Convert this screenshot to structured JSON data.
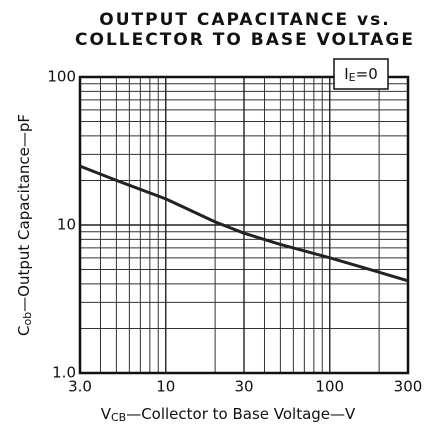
{
  "chart_data": {
    "type": "line",
    "title": [
      "OUTPUT CAPACITANCE vs.",
      "COLLECTOR TO BASE VOLTAGE"
    ],
    "x_label": {
      "main": "V",
      "sub": "CB",
      "rest": "—Collector to Base Voltage—V"
    },
    "y_label": {
      "main": "C",
      "sub": "ob",
      "rest": "—Output Capacitance—pF"
    },
    "annotation": {
      "main": "I",
      "sub": "E",
      "rest": "=0"
    },
    "x": [
      3,
      5,
      10,
      20,
      30,
      50,
      100,
      200,
      300
    ],
    "values": [
      25,
      20,
      15,
      10.5,
      8.8,
      7.4,
      6,
      4.8,
      4.2
    ],
    "color": "#222222",
    "xlog": true,
    "ylog": true,
    "grid": true,
    "xlim": [
      3,
      300
    ],
    "ylim": [
      1,
      100
    ],
    "xticks": [
      {
        "value": 3,
        "label": "3.0"
      },
      10,
      30,
      100,
      300
    ],
    "yticks": [
      {
        "value": 1,
        "label": "1.0"
      },
      10,
      100
    ],
    "xgrid": [
      4,
      5,
      6,
      7,
      8,
      9,
      20,
      40,
      50,
      60,
      70,
      80,
      90,
      200
    ],
    "ygrid": [
      2,
      3,
      4,
      5,
      6,
      7,
      8,
      9,
      20,
      30,
      40,
      50,
      60,
      70,
      80,
      90
    ]
  }
}
